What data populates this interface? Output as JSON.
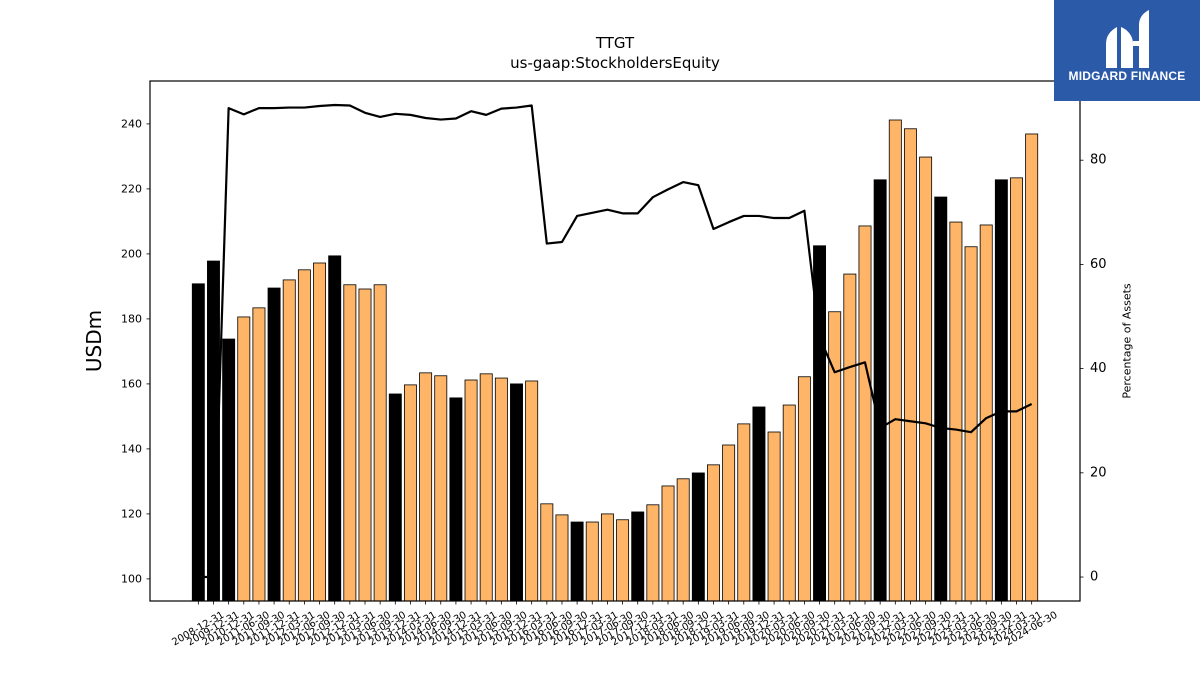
{
  "logo": {
    "icon": "midgard-logo-icon",
    "text": "MIDGARD FINANCE",
    "background": "#2b5aa8",
    "foreground": "#ffffff"
  },
  "chart_data": {
    "type": "bar",
    "title": "TTGT",
    "subtitle": "us-gaap:StockholdersEquity",
    "ylabel": "USDm",
    "y2label": "Percentage of Assets",
    "ylim": [
      93.2,
      253.2
    ],
    "y2lim": [
      -4.6,
      95.2
    ],
    "yticks": [
      100,
      120,
      140,
      160,
      180,
      200,
      220,
      240
    ],
    "y2ticks": [
      0,
      20,
      40,
      60,
      80
    ],
    "grid": false,
    "categories": [
      "2008-12-31",
      "2009-12-31",
      "2010-12-31",
      "2011-06-30",
      "2011-09-30",
      "2011-12-31",
      "2012-03-31",
      "2012-06-30",
      "2012-09-30",
      "2012-12-31",
      "2013-03-31",
      "2013-06-30",
      "2013-09-30",
      "2013-12-31",
      "2014-03-31",
      "2014-06-30",
      "2014-09-30",
      "2014-12-31",
      "2015-03-31",
      "2015-06-30",
      "2015-09-30",
      "2015-12-31",
      "2016-03-31",
      "2016-06-30",
      "2016-09-30",
      "2016-12-31",
      "2017-03-31",
      "2017-06-30",
      "2017-09-30",
      "2017-12-31",
      "2018-03-31",
      "2018-06-30",
      "2018-09-30",
      "2018-12-31",
      "2019-03-31",
      "2019-06-30",
      "2019-09-30",
      "2019-12-31",
      "2020-03-31",
      "2020-06-30",
      "2020-09-30",
      "2020-12-31",
      "2021-03-31",
      "2021-06-30",
      "2021-09-30",
      "2021-12-31",
      "2022-03-31",
      "2022-06-30",
      "2022-09-30",
      "2022-12-31",
      "2023-03-31",
      "2023-06-30",
      "2023-09-30",
      "2023-12-31",
      "2024-03-31",
      "2024-06-30"
    ],
    "series": [
      {
        "type": "bar",
        "values": [
          190.8,
          197.8,
          173.8,
          180.6,
          183.4,
          189.5,
          192.0,
          195.1,
          197.2,
          199.4,
          190.5,
          189.2,
          190.5,
          156.9,
          159.7,
          163.4,
          162.5,
          155.7,
          161.2,
          163.1,
          161.8,
          160.0,
          160.9,
          123.1,
          119.7,
          117.5,
          117.5,
          120.0,
          118.2,
          120.6,
          122.8,
          128.6,
          130.8,
          132.6,
          135.1,
          141.2,
          147.7,
          152.9,
          145.2,
          153.5,
          162.2,
          202.5,
          182.2,
          193.8,
          208.6,
          222.8,
          241.2,
          238.5,
          229.8,
          217.5,
          209.8,
          202.2,
          208.9,
          222.8,
          223.4,
          236.9
        ],
        "colors": [
          "#000000",
          "#000000",
          "#000000",
          "#ffb568",
          "#ffb568",
          "#000000",
          "#ffb568",
          "#ffb568",
          "#ffb568",
          "#000000",
          "#ffb568",
          "#ffb568",
          "#ffb568",
          "#000000",
          "#ffb568",
          "#ffb568",
          "#ffb568",
          "#000000",
          "#ffb568",
          "#ffb568",
          "#ffb568",
          "#000000",
          "#ffb568",
          "#ffb568",
          "#ffb568",
          "#000000",
          "#ffb568",
          "#ffb568",
          "#ffb568",
          "#000000",
          "#ffb568",
          "#ffb568",
          "#ffb568",
          "#000000",
          "#ffb568",
          "#ffb568",
          "#ffb568",
          "#000000",
          "#ffb568",
          "#ffb568",
          "#ffb568",
          "#000000",
          "#ffb568",
          "#ffb568",
          "#ffb568",
          "#000000",
          "#ffb568",
          "#ffb568",
          "#ffb568",
          "#000000",
          "#ffb568",
          "#ffb568",
          "#ffb568",
          "#000000",
          "#ffb568",
          "#ffb568"
        ],
        "edgecolor": "#000000"
      },
      {
        "type": "line",
        "secondary_axis": true,
        "values": [
          0,
          0,
          90.0,
          88.8,
          90.0,
          90.0,
          90.1,
          90.1,
          90.4,
          90.6,
          90.5,
          89.1,
          88.3,
          88.9,
          88.7,
          88.1,
          87.8,
          88.0,
          89.4,
          88.7,
          89.9,
          90.1,
          90.5,
          64.0,
          64.3,
          69.3,
          69.9,
          70.5,
          69.8,
          69.8,
          72.9,
          74.4,
          75.8,
          75.2,
          66.8,
          68.1,
          69.3,
          69.3,
          68.9,
          68.9,
          70.3,
          46.0,
          39.3,
          40.3,
          41.2,
          28.6,
          30.3,
          29.9,
          29.5,
          28.6,
          28.3,
          27.8,
          30.5,
          31.8,
          31.8,
          33.2
        ],
        "color": "#000000"
      }
    ]
  }
}
